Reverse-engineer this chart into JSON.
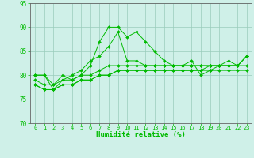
{
  "xlabel": "Humidité relative (%)",
  "ylabel": "",
  "xlim": [
    -0.5,
    23.5
  ],
  "ylim": [
    70,
    95
  ],
  "yticks": [
    70,
    75,
    80,
    85,
    90,
    95
  ],
  "xticks": [
    0,
    1,
    2,
    3,
    4,
    5,
    6,
    7,
    8,
    9,
    10,
    11,
    12,
    13,
    14,
    15,
    16,
    17,
    18,
    19,
    20,
    21,
    22,
    23
  ],
  "bg_color": "#cff0e8",
  "grid_color": "#99ccbb",
  "line_color": "#00bb00",
  "tick_fontsize": 5.0,
  "xlabel_fontsize": 6.5,
  "series": [
    [
      80,
      80,
      78,
      80,
      79,
      80,
      82,
      87,
      90,
      90,
      88,
      89,
      87,
      85,
      83,
      82,
      82,
      83,
      80,
      81,
      82,
      82,
      82,
      84
    ],
    [
      80,
      80,
      77,
      79,
      80,
      81,
      83,
      84,
      86,
      89,
      83,
      83,
      82,
      82,
      82,
      82,
      82,
      82,
      82,
      82,
      82,
      82,
      82,
      84
    ],
    [
      79,
      78,
      78,
      79,
      79,
      80,
      80,
      81,
      82,
      82,
      82,
      82,
      82,
      82,
      82,
      82,
      82,
      82,
      82,
      82,
      82,
      82,
      82,
      82
    ],
    [
      78,
      77,
      77,
      78,
      78,
      79,
      79,
      80,
      80,
      81,
      81,
      81,
      81,
      81,
      81,
      81,
      81,
      81,
      81,
      81,
      81,
      81,
      81,
      81
    ],
    [
      78,
      77,
      77,
      78,
      78,
      79,
      79,
      80,
      80,
      81,
      81,
      81,
      81,
      81,
      81,
      81,
      81,
      81,
      81,
      82,
      82,
      83,
      82,
      84
    ]
  ]
}
